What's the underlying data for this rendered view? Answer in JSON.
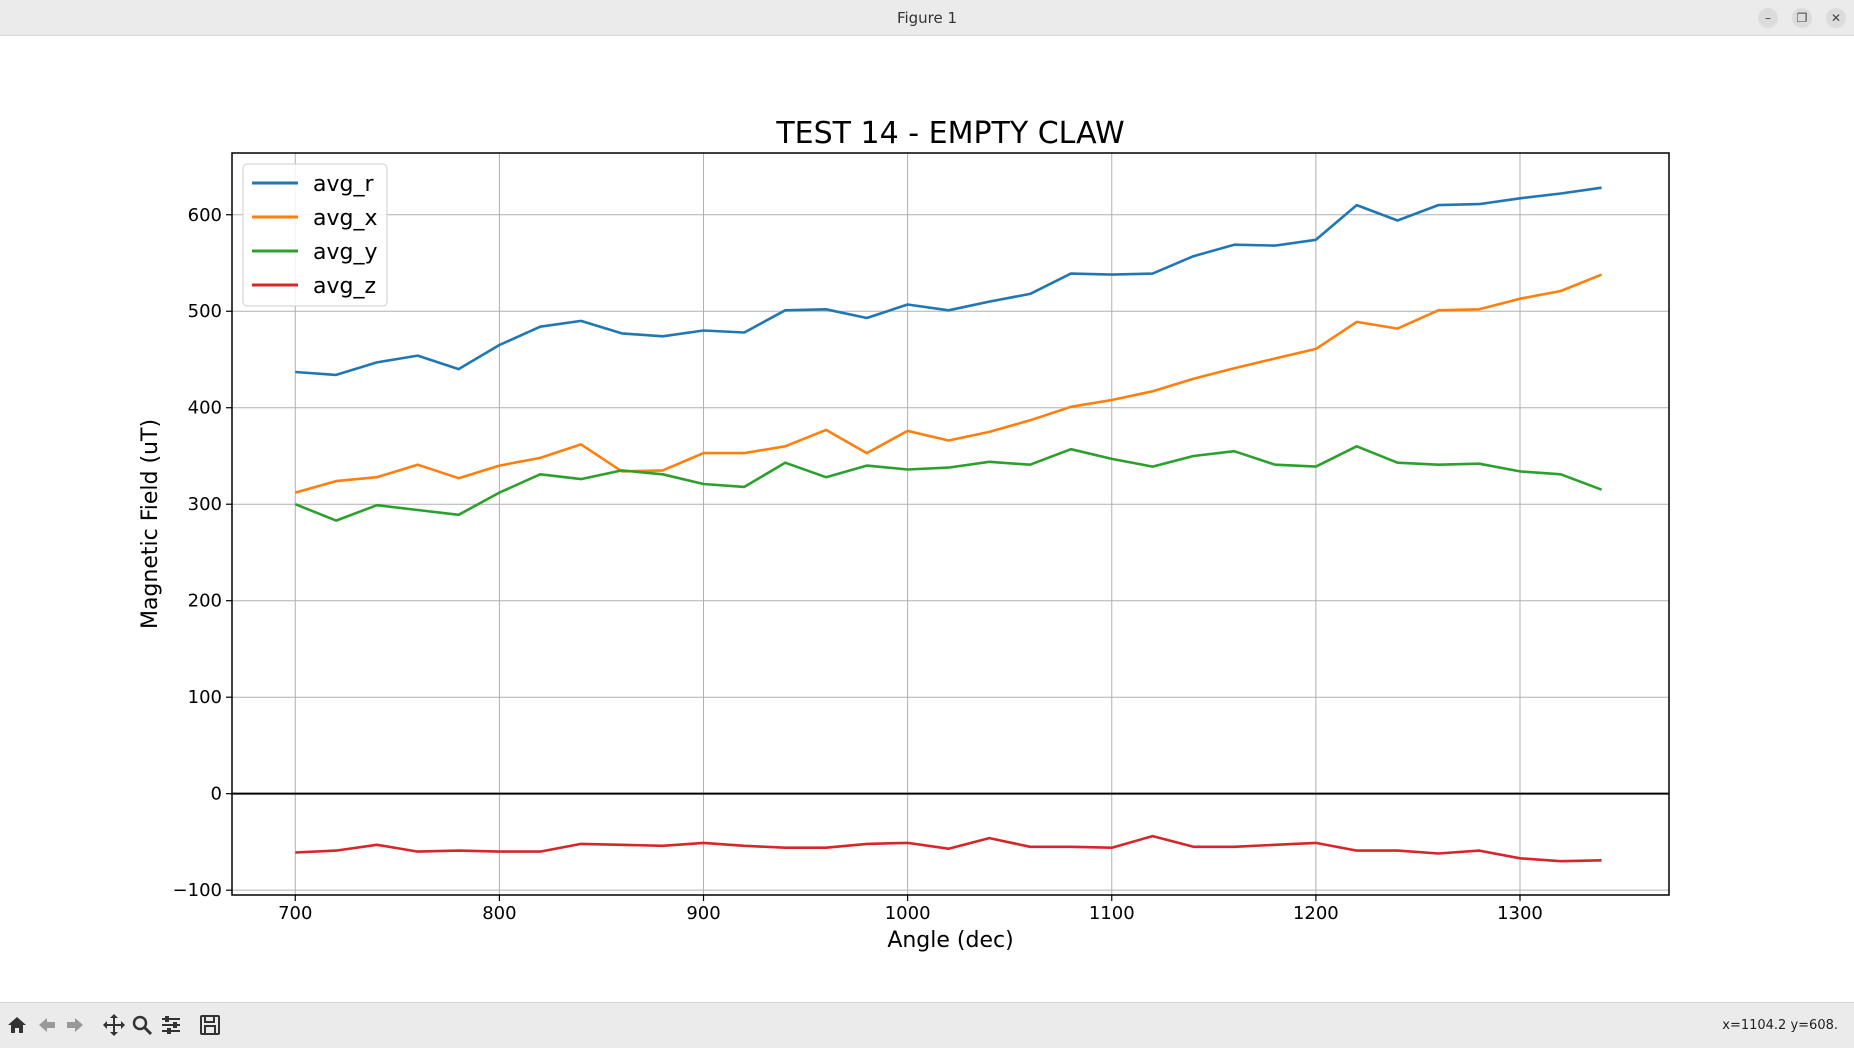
{
  "window": {
    "title": "Figure 1",
    "buttons": {
      "minimize": "–",
      "restore": "❐",
      "close": "✕"
    }
  },
  "toolbar": {
    "icons": [
      "home-icon",
      "back-arrow-icon",
      "forward-arrow-icon",
      "pan-icon",
      "zoom-icon",
      "configure-subplots-icon",
      "save-icon"
    ],
    "coords": "x=1104.2 y=608."
  },
  "chart_data": {
    "type": "line",
    "title": "TEST 14 - EMPTY CLAW",
    "xlabel": "Angle (dec)",
    "ylabel": "Magnetic Field (uT)",
    "xlim": [
      669,
      1373
    ],
    "ylim": [
      -105,
      664
    ],
    "xticks": [
      700,
      800,
      900,
      1000,
      1100,
      1200,
      1300
    ],
    "yticks": [
      -100,
      0,
      100,
      200,
      300,
      400,
      500,
      600
    ],
    "ytick_labels": [
      "−100",
      "0",
      "100",
      "200",
      "300",
      "400",
      "500",
      "600"
    ],
    "grid": true,
    "zero_line": true,
    "legend_position": "upper left",
    "x": [
      700,
      720,
      740,
      760,
      780,
      800,
      820,
      840,
      860,
      880,
      900,
      920,
      940,
      960,
      980,
      1000,
      1020,
      1040,
      1060,
      1080,
      1100,
      1120,
      1140,
      1160,
      1180,
      1200,
      1220,
      1240,
      1260,
      1280,
      1300,
      1320,
      1340
    ],
    "series": [
      {
        "name": "avg_r",
        "color": "#1f77b4",
        "values": [
          437,
          434,
          447,
          454,
          440,
          465,
          484,
          490,
          477,
          474,
          480,
          478,
          501,
          502,
          493,
          507,
          501,
          510,
          518,
          539,
          538,
          539,
          557,
          569,
          568,
          574,
          610,
          594,
          610,
          611,
          617,
          622,
          628
        ]
      },
      {
        "name": "avg_x",
        "color": "#ff7f0e",
        "values": [
          312,
          324,
          328,
          341,
          327,
          340,
          348,
          362,
          334,
          335,
          353,
          353,
          360,
          377,
          353,
          376,
          366,
          375,
          387,
          401,
          408,
          417,
          430,
          441,
          451,
          461,
          489,
          482,
          501,
          502,
          513,
          521,
          538
        ]
      },
      {
        "name": "avg_y",
        "color": "#2ca02c",
        "values": [
          300,
          283,
          299,
          294,
          289,
          312,
          331,
          326,
          335,
          331,
          321,
          318,
          343,
          328,
          340,
          336,
          338,
          344,
          341,
          357,
          347,
          339,
          350,
          355,
          341,
          339,
          360,
          343,
          341,
          342,
          334,
          331,
          315
        ]
      },
      {
        "name": "avg_z",
        "color": "#d62728",
        "values": [
          -61,
          -59,
          -53,
          -60,
          -59,
          -60,
          -60,
          -52,
          -53,
          -54,
          -51,
          -54,
          -56,
          -56,
          -52,
          -51,
          -57,
          -46,
          -55,
          -55,
          -56,
          -44,
          -55,
          -55,
          -53,
          -51,
          -59,
          -59,
          -62,
          -59,
          -67,
          -70,
          -69
        ]
      }
    ]
  }
}
